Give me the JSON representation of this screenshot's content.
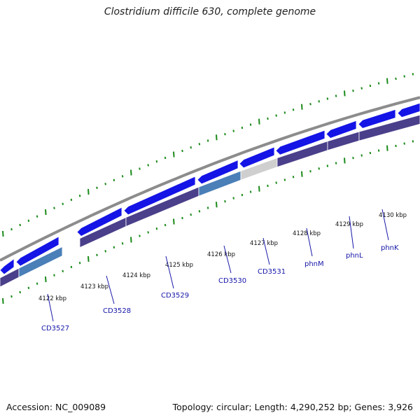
{
  "title": "Clostridium difficile 630, complete genome",
  "footer": {
    "accession": "Accession: NC_009089",
    "stats": "Topology: circular; Length: 4,290,252 bp; Genes: 3,926"
  },
  "colors": {
    "backbone": "#8c8c8c",
    "forward_cds": "#1414e6",
    "reverse_cds": "#4a3f8a",
    "feature_blue": "#4a7fb8",
    "feature_grey": "#cfcfcf",
    "tick": "#1a8a1a",
    "label": "#1515a8"
  },
  "kbp_labels": [
    "4122 kbp",
    "4123 kbp",
    "4124 kbp",
    "4125 kbp",
    "4126 kbp",
    "4127 kbp",
    "4128 kbp",
    "4129 kbp",
    "4130 kbp"
  ],
  "gene_labels": [
    "CD3527",
    "CD3528",
    "CD3529",
    "CD3530",
    "CD3531",
    "phnM",
    "phnL",
    "phnK"
  ]
}
